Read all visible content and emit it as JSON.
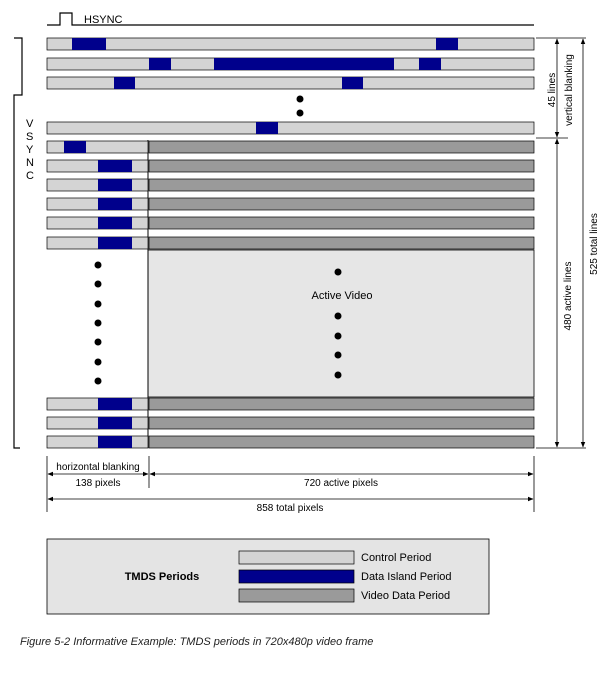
{
  "colors": {
    "control": "#d4d4d4",
    "data_island": "#00008c",
    "video": "#9a9a9a",
    "active_bg": "#e6e6e6",
    "legend_bg": "#e4e4e4"
  },
  "signals": {
    "hsync": "HSYNC",
    "vsync_letters": [
      "V",
      "S",
      "Y",
      "N",
      "C"
    ]
  },
  "labels": {
    "vertical_blanking_count": "45 lines",
    "vertical_blanking": "vertical blanking",
    "active_lines": "480 active lines",
    "total_lines": "525 total lines",
    "active_video": "Active Video",
    "horizontal_blanking": "horizontal blanking",
    "blank_pixels": "138 pixels",
    "active_pixels": "720 active pixels",
    "total_pixels": "858 total pixels"
  },
  "legend": {
    "title": "TMDS Periods",
    "items": [
      {
        "label": "Control Period",
        "color_key": "control"
      },
      {
        "label": "Data Island Period",
        "color_key": "data_island"
      },
      {
        "label": "Video Data Period",
        "color_key": "video"
      }
    ]
  },
  "caption": "Figure 5-2 Informative Example: TMDS periods in 720x480p video frame"
}
